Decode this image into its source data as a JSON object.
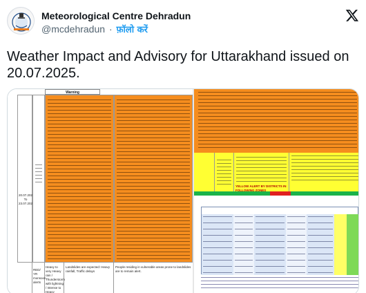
{
  "post": {
    "author_name": "Meteorological Centre Dehradun",
    "author_handle": "@mcdehradun",
    "separator": "·",
    "follow_label": "फ़ॉलो करें",
    "text": "Weather Impact and Advisory for Uttarakhand issued on 20.07.2025."
  },
  "document": {
    "warning_header": "Warning",
    "date_range": "20.07.2025 To 23.07.2025",
    "bottom_warning": "Heavy to very Heavy rain / Thunderstorm with lightning / Intense to Heavy",
    "bottom_category": "RED/ YR monsoon alerts",
    "bottom_impact_1": "Landslides are expected: Heavy rainfall, Traffic delays",
    "bottom_advisory_1": "People residing in vulnerable areas prone to landslides are to remain alert.",
    "right_yellow_note": "YELLOW ALERT BY DISTRICTS IN FOLLOWING ZONES"
  },
  "colors": {
    "orange": "#f58d1e",
    "yellow": "#ffff33",
    "green": "#1bb34a",
    "red": "#e02020",
    "link_blue": "#1d9bf0"
  },
  "icons": {
    "avatar": "imd-emblem-icon",
    "x_logo": "x-logo-icon"
  }
}
